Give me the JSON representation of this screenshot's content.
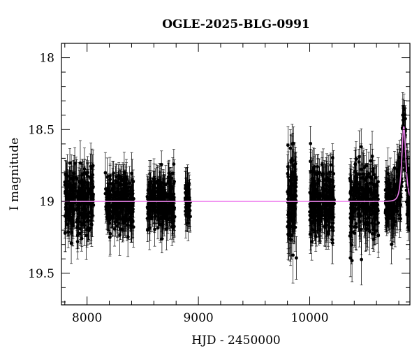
{
  "chart_data": {
    "type": "scatter",
    "title": "OGLE-2025-BLG-0991",
    "xlabel": "HJD - 2450000",
    "ylabel": "I magnitude",
    "xlim": [
      7770,
      10900
    ],
    "ylim": [
      19.72,
      17.9
    ],
    "y_inverted": true,
    "grid": false,
    "legend": "none",
    "x_ticks": [
      8000,
      9000,
      10000
    ],
    "y_ticks": [
      18,
      18.5,
      19,
      19.5
    ],
    "x_tick_labels": [
      "8000",
      "9000",
      "10000"
    ],
    "y_tick_labels": [
      "18",
      "18.5",
      "19",
      "19.5"
    ],
    "colors": {
      "points": "#000000",
      "model": "#ee82ee"
    },
    "series": [
      {
        "kind": "observations",
        "note_type": "points-with-errorbars",
        "seasons": [
          {
            "x_range": [
              7800,
              8060
            ],
            "center_mag": 19.0,
            "spread": 0.2,
            "err": 0.12,
            "n": 260
          },
          {
            "x_range": [
              8160,
              8420
            ],
            "center_mag": 19.0,
            "spread": 0.17,
            "err": 0.11,
            "n": 260
          },
          {
            "x_range": [
              8540,
              8790
            ],
            "center_mag": 19.0,
            "spread": 0.17,
            "err": 0.11,
            "n": 260
          },
          {
            "x_range": [
              8880,
              8930
            ],
            "center_mag": 19.02,
            "spread": 0.18,
            "err": 0.12,
            "n": 40
          },
          {
            "x_range": [
              9800,
              9880
            ],
            "center_mag": 19.0,
            "spread": 0.3,
            "err": 0.14,
            "n": 100
          },
          {
            "x_range": [
              10000,
              10220
            ],
            "center_mag": 19.0,
            "spread": 0.22,
            "err": 0.13,
            "n": 240
          },
          {
            "x_range": [
              10360,
              10620
            ],
            "center_mag": 19.0,
            "spread": 0.22,
            "err": 0.13,
            "n": 240
          },
          {
            "x_range": [
              10680,
              10900
            ],
            "center_mag": 19.0,
            "spread": 0.2,
            "err": 0.13,
            "n": 240
          }
        ]
      },
      {
        "kind": "model",
        "baseline_mag": 19.0,
        "peak_time": 10845,
        "peak_mag": 18.48,
        "tE_days": 22
      }
    ]
  }
}
